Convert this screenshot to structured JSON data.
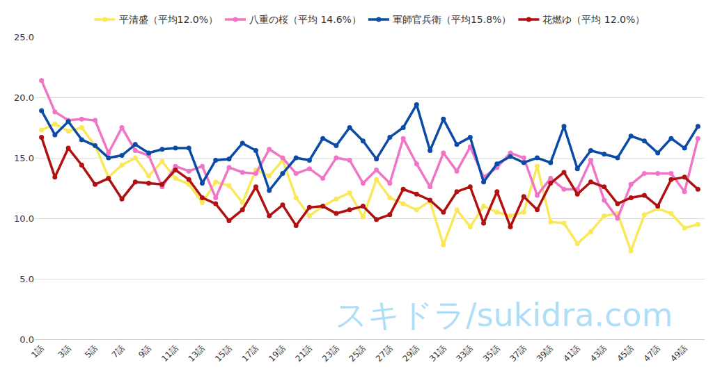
{
  "chart_data": {
    "type": "line",
    "categories": [
      "1話",
      null,
      "3話",
      null,
      "5話",
      null,
      "7話",
      null,
      "9話",
      null,
      "11話",
      null,
      "13話",
      null,
      "15話",
      null,
      "17話",
      null,
      "19話",
      null,
      "21話",
      null,
      "23話",
      null,
      "25話",
      null,
      "27話",
      null,
      "29話",
      null,
      "31話",
      null,
      "33話",
      null,
      "35話",
      null,
      "37話",
      null,
      "39話",
      null,
      "41話",
      null,
      "43話",
      null,
      "45話",
      null,
      "47話",
      null,
      "49話",
      null
    ],
    "series": [
      {
        "name": "平清盛（平均12.0%）",
        "color": "#f9e85a",
        "values": [
          17.3,
          17.8,
          17.2,
          17.5,
          16.0,
          13.4,
          14.4,
          15.0,
          13.5,
          14.7,
          13.3,
          12.8,
          11.3,
          13.0,
          12.7,
          11.3,
          14.0,
          13.5,
          14.8,
          11.7,
          10.2,
          11.0,
          11.6,
          12.1,
          10.1,
          13.2,
          11.7,
          11.2,
          10.7,
          11.4,
          7.8,
          10.7,
          9.3,
          11.0,
          10.5,
          10.2,
          10.5,
          14.3,
          9.7,
          9.6,
          7.9,
          8.9,
          10.2,
          10.4,
          7.3,
          10.3,
          10.8,
          10.4,
          9.2,
          9.5
        ]
      },
      {
        "name": "八重の桜（平均 14.6%）",
        "color": "#f075c6",
        "values": [
          21.4,
          18.8,
          18.1,
          18.2,
          18.1,
          15.4,
          17.5,
          15.6,
          15.2,
          12.6,
          14.3,
          13.9,
          14.3,
          11.7,
          14.2,
          13.8,
          13.7,
          15.7,
          15.0,
          13.7,
          14.1,
          13.3,
          15.0,
          14.8,
          12.9,
          14.0,
          12.9,
          16.6,
          14.5,
          12.6,
          15.4,
          13.9,
          15.9,
          13.4,
          14.2,
          15.4,
          15.0,
          11.9,
          13.3,
          12.4,
          12.4,
          14.8,
          11.5,
          10.0,
          12.8,
          13.7,
          13.7,
          13.7,
          12.2,
          16.6
        ]
      },
      {
        "name": "軍師官兵衛（平均15.8%）",
        "color": "#0b4ba5",
        "values": [
          18.9,
          16.9,
          18.0,
          16.5,
          16.0,
          15.0,
          15.2,
          16.1,
          15.4,
          15.7,
          15.8,
          15.8,
          12.9,
          14.8,
          14.9,
          16.2,
          15.6,
          12.3,
          13.7,
          15.0,
          14.8,
          16.6,
          16.0,
          17.5,
          16.4,
          14.9,
          16.7,
          17.5,
          19.4,
          15.6,
          18.2,
          16.1,
          16.7,
          13.0,
          14.5,
          15.1,
          14.6,
          15.0,
          14.6,
          17.6,
          14.1,
          15.6,
          15.3,
          15.0,
          16.8,
          16.4,
          15.4,
          16.6,
          15.8,
          17.6
        ]
      },
      {
        "name": "花燃ゆ（平均 12.0%）",
        "color": "#b01010",
        "values": [
          16.7,
          13.4,
          15.8,
          14.4,
          12.8,
          13.3,
          11.6,
          13.0,
          12.9,
          12.8,
          14.0,
          13.2,
          11.7,
          11.2,
          9.8,
          10.7,
          12.6,
          10.2,
          11.1,
          9.4,
          10.9,
          11.0,
          10.4,
          10.7,
          11.0,
          9.9,
          10.3,
          12.4,
          12.0,
          11.5,
          10.5,
          12.2,
          12.6,
          9.6,
          12.2,
          9.3,
          11.8,
          10.7,
          12.9,
          13.8,
          12.0,
          13.0,
          12.6,
          11.2,
          11.7,
          11.9,
          11.0,
          13.2,
          13.4,
          12.4
        ]
      }
    ],
    "ylim": [
      0,
      25
    ],
    "yticks": [
      {
        "value": 0,
        "label": "0.0"
      },
      {
        "value": 5,
        "label": "5.0"
      },
      {
        "value": 10,
        "label": "10.0"
      },
      {
        "value": 15,
        "label": "15.0"
      },
      {
        "value": 20,
        "label": "20.0"
      },
      {
        "value": 25,
        "label": "25.0"
      }
    ],
    "grid": true,
    "legend": "top",
    "marker": "circle",
    "line_style": "solid",
    "annotations": [
      "スキドラ/sukidra.com"
    ]
  }
}
